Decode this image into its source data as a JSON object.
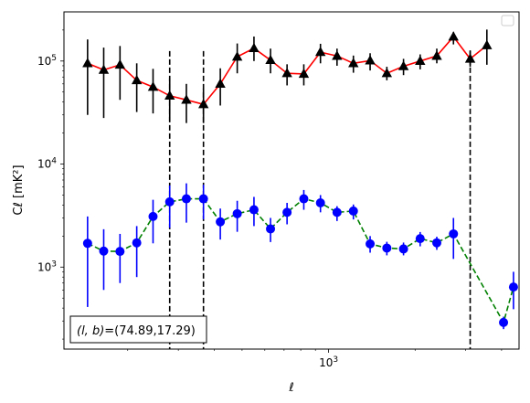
{
  "chart_data": {
    "type": "scatter",
    "title": "",
    "xlabel": "ℓ",
    "ylabel": "Cℓ [mK²]",
    "xscale": "log",
    "yscale": "log",
    "xlim": [
      120,
      4600
    ],
    "ylim": [
      160,
      300000
    ],
    "grid": false,
    "legend": "top-right",
    "x_tick_labels": [
      {
        "value": 1000,
        "label": "10",
        "sup": "3"
      }
    ],
    "y_tick_labels": [
      {
        "value": 1000,
        "label": "10",
        "sup": "3"
      },
      {
        "value": 10000,
        "label": "10",
        "sup": "4"
      },
      {
        "value": 100000,
        "label": "10",
        "sup": "5"
      }
    ],
    "x": [
      145,
      165,
      188,
      215,
      245,
      280,
      320,
      367,
      420,
      481,
      550,
      628,
      717,
      820,
      937,
      1070,
      1220,
      1395,
      1595,
      1823,
      2083,
      2380,
      2720,
      3110,
      3555,
      4063,
      4400
    ],
    "series": [
      {
        "color": "#ff0000",
        "marker_color": "#000000",
        "marker": "triangle",
        "linestyle": "solid",
        "values": [
          95000,
          82000,
          92000,
          65000,
          56000,
          46000,
          42000,
          38000,
          60000,
          110000,
          133000,
          102000,
          76000,
          75000,
          122000,
          112000,
          95000,
          101000,
          76000,
          89000,
          100000,
          112000,
          172000,
          105000,
          142000
        ],
        "err_low": [
          65000,
          54000,
          50000,
          33000,
          25000,
          20000,
          17000,
          13000,
          23000,
          34000,
          33000,
          26000,
          18000,
          17000,
          27000,
          22000,
          18000,
          20000,
          11000,
          16000,
          17000,
          17000,
          27000,
          17000,
          50000
        ],
        "err_high": [
          67000,
          53000,
          48000,
          30000,
          28000,
          22000,
          18000,
          16000,
          25000,
          38000,
          40000,
          30000,
          17000,
          18000,
          25000,
          20000,
          18000,
          18000,
          12000,
          16000,
          16000,
          20000,
          20000,
          22000,
          60000
        ],
        "x_index": [
          0,
          1,
          2,
          3,
          4,
          5,
          6,
          7,
          8,
          9,
          10,
          11,
          12,
          13,
          14,
          15,
          16,
          17,
          18,
          19,
          20,
          21,
          22,
          23,
          24
        ]
      },
      {
        "color": "#008000",
        "marker_color": "#0000ff",
        "marker": "circle",
        "linestyle": "dashed",
        "values": [
          1700,
          1430,
          1420,
          1720,
          3100,
          4300,
          4600,
          4600,
          2750,
          3300,
          3600,
          2350,
          3400,
          4600,
          4200,
          3400,
          3500,
          1680,
          1530,
          1500,
          1890,
          1720,
          2100,
          290,
          640
        ],
        "err_low": [
          1290,
          830,
          720,
          920,
          1400,
          1900,
          1900,
          1700,
          900,
          1100,
          1100,
          600,
          800,
          1000,
          800,
          600,
          600,
          300,
          230,
          200,
          300,
          250,
          900,
          40,
          250
        ],
        "err_high": [
          1400,
          900,
          680,
          780,
          1400,
          1900,
          1900,
          1700,
          950,
          1100,
          1200,
          650,
          800,
          1000,
          800,
          500,
          550,
          320,
          230,
          230,
          300,
          250,
          900,
          40,
          260
        ],
        "x_index": [
          0,
          1,
          2,
          3,
          4,
          5,
          6,
          7,
          8,
          9,
          10,
          11,
          12,
          13,
          14,
          15,
          16,
          17,
          18,
          19,
          20,
          21,
          22,
          25,
          26
        ]
      }
    ],
    "vlines": [
      {
        "x": 280,
        "y_top": 125000,
        "style": "dashed"
      },
      {
        "x": 367,
        "y_top": 125000,
        "style": "dashed"
      },
      {
        "x": 3110,
        "y_top": 125000,
        "style": "dashed"
      }
    ],
    "annotation": {
      "prefix": "(l, b)",
      "text": "=(74.89,17.29)",
      "location": "lower-left"
    }
  }
}
